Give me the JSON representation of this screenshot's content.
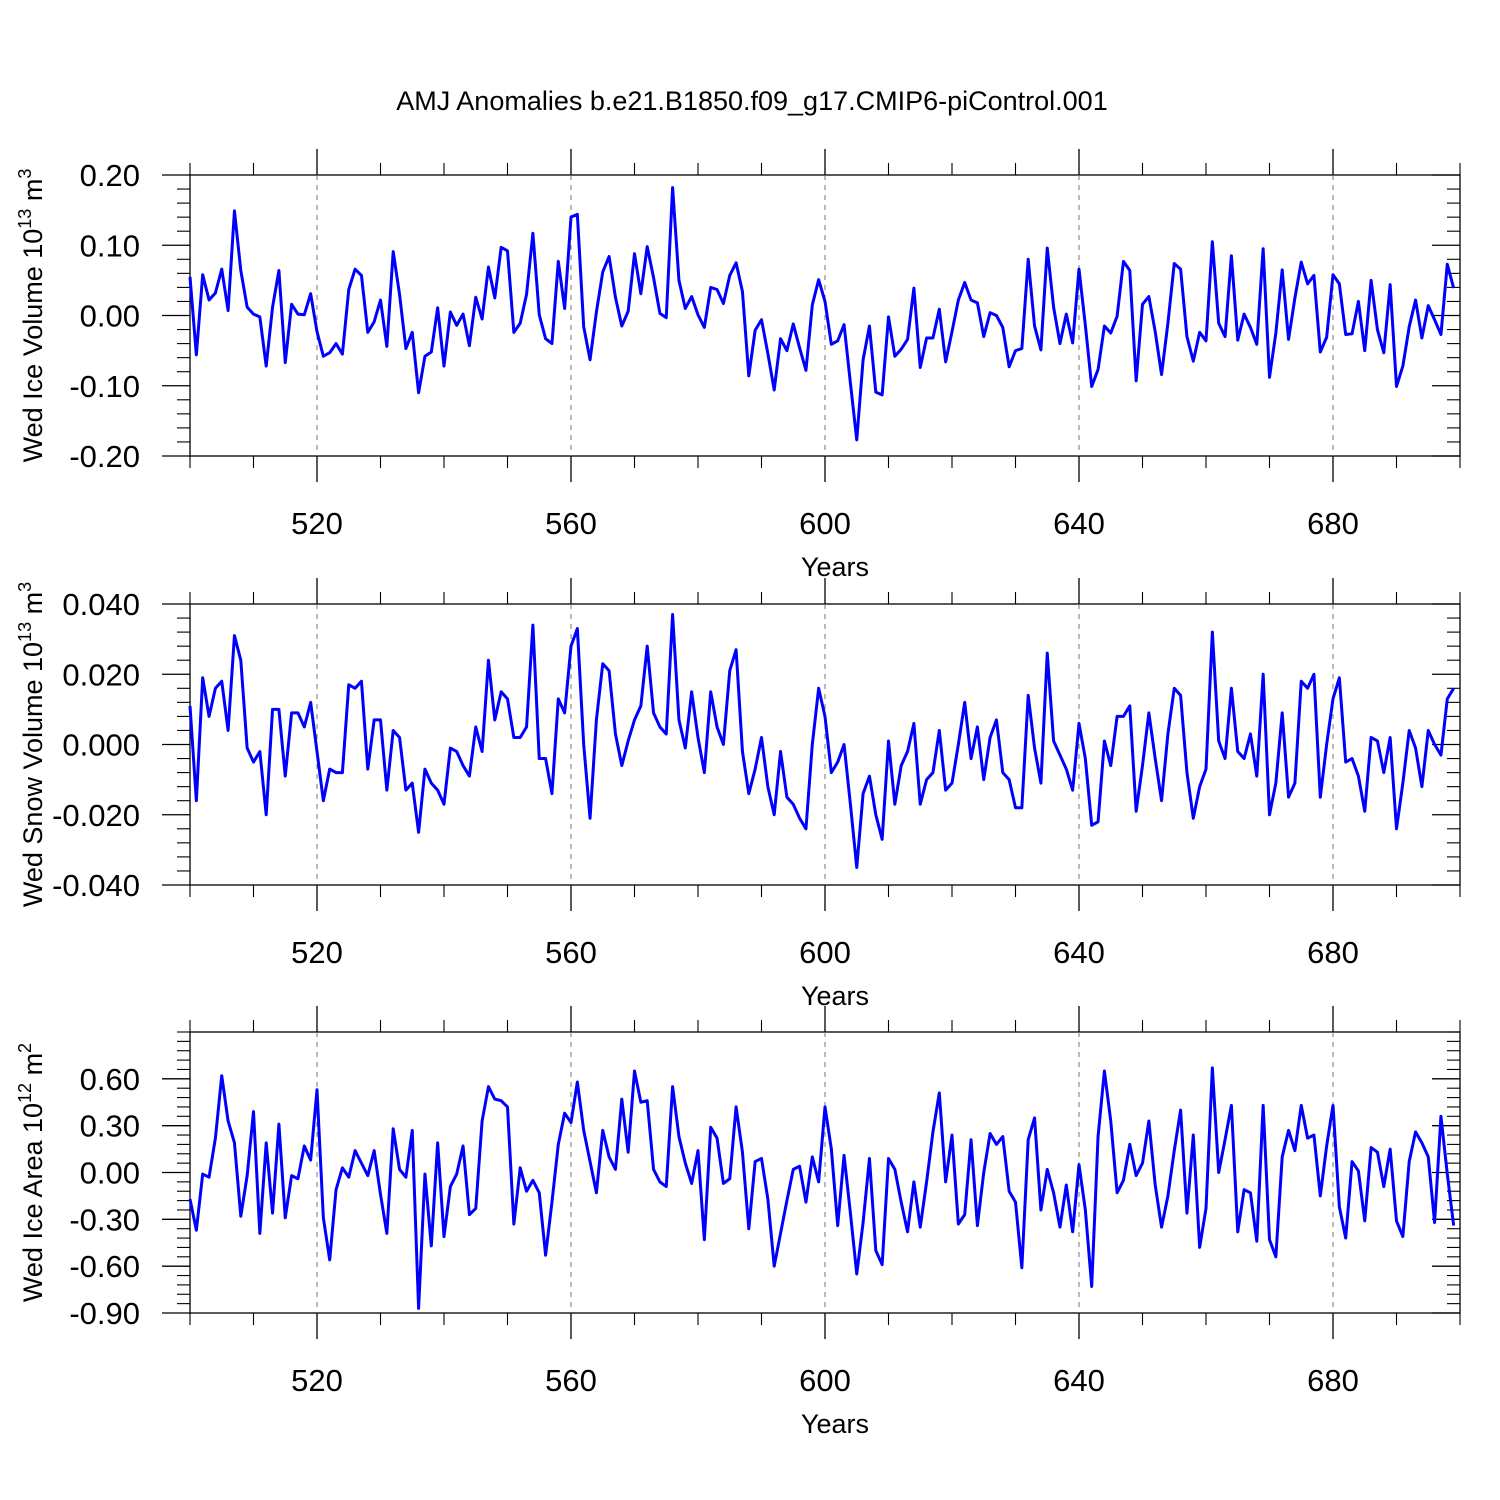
{
  "figure": {
    "title": "AMJ Anomalies b.e21.B1850.f09_g17.CMIP6-piControl.001",
    "line_color": "#0000ff"
  },
  "chart_data": [
    {
      "type": "line",
      "title": "",
      "xlabel": "Years",
      "ylabel": "Wed Ice Volume 10",
      "ylabel_exp": "13",
      "ylabel_unit": " m",
      "ylabel_unit_exp": "3",
      "xlim": [
        500,
        700
      ],
      "ylim": [
        -0.2,
        0.2
      ],
      "yticks": [
        -0.2,
        -0.1,
        0.0,
        0.1,
        0.2
      ],
      "ytick_labels": [
        "-0.20",
        "-0.10",
        "0.00",
        "0.10",
        "0.20"
      ],
      "xticks": [
        520,
        560,
        600,
        640,
        680
      ],
      "xtick_labels": [
        "520",
        "560",
        "600",
        "640",
        "680"
      ],
      "grid": "vertical dashed at major x ticks",
      "series": [
        {
          "name": "Wed Ice Volume",
          "x_start": 500,
          "values": [
            0.055,
            -0.056,
            0.058,
            0.022,
            0.032,
            0.066,
            0.007,
            0.149,
            0.064,
            0.012,
            0.002,
            -0.002,
            -0.072,
            0.012,
            0.064,
            -0.067,
            0.016,
            0.002,
            0.001,
            0.031,
            -0.023,
            -0.058,
            -0.053,
            -0.04,
            -0.055,
            0.037,
            0.066,
            0.057,
            -0.024,
            -0.009,
            0.022,
            -0.044,
            0.091,
            0.03,
            -0.047,
            -0.024,
            -0.11,
            -0.058,
            -0.052,
            0.011,
            -0.072,
            0.005,
            -0.014,
            0.002,
            -0.043,
            0.026,
            -0.005,
            0.069,
            0.025,
            0.097,
            0.092,
            -0.024,
            -0.011,
            0.03,
            0.117,
            0.001,
            -0.033,
            -0.04,
            0.077,
            0.01,
            0.14,
            0.144,
            -0.016,
            -0.063,
            0.005,
            0.062,
            0.084,
            0.026,
            -0.015,
            0.006,
            0.088,
            0.031,
            0.098,
            0.054,
            0.003,
            -0.003,
            0.182,
            0.05,
            0.01,
            0.027,
            0.001,
            -0.017,
            0.04,
            0.037,
            0.017,
            0.057,
            0.075,
            0.034,
            -0.086,
            -0.021,
            -0.006,
            -0.054,
            -0.106,
            -0.033,
            -0.05,
            -0.012,
            -0.046,
            -0.078,
            0.015,
            0.051,
            0.02,
            -0.041,
            -0.036,
            -0.013,
            -0.096,
            -0.177,
            -0.063,
            -0.015,
            -0.109,
            -0.113,
            -0.002,
            -0.058,
            -0.048,
            -0.034,
            0.039,
            -0.074,
            -0.032,
            -0.032,
            0.009,
            -0.066,
            -0.023,
            0.022,
            0.047,
            0.022,
            0.018,
            -0.03,
            0.004,
            0.0,
            -0.017,
            -0.073,
            -0.05,
            -0.047,
            0.08,
            -0.015,
            -0.049,
            0.096,
            0.012,
            -0.04,
            0.002,
            -0.039,
            0.066,
            -0.014,
            -0.101,
            -0.077,
            -0.015,
            -0.025,
            -0.001,
            0.077,
            0.064,
            -0.093,
            0.016,
            0.027,
            -0.023,
            -0.084,
            -0.011,
            0.074,
            0.066,
            -0.03,
            -0.065,
            -0.024,
            -0.036,
            0.105,
            -0.011,
            -0.03,
            0.085,
            -0.035,
            0.002,
            -0.017,
            -0.041,
            0.095,
            -0.088,
            -0.025,
            0.065,
            -0.034,
            0.025,
            0.076,
            0.045,
            0.057,
            -0.052,
            -0.031,
            0.058,
            0.045,
            -0.027,
            -0.026,
            0.02,
            -0.05,
            0.05,
            -0.02,
            -0.053,
            0.044,
            -0.101,
            -0.072,
            -0.016,
            0.022,
            -0.032,
            0.014,
            -0.006,
            -0.027,
            0.073,
            0.039
          ]
        }
      ]
    },
    {
      "type": "line",
      "title": "",
      "xlabel": "Years",
      "ylabel": "Wed Snow Volume 10",
      "ylabel_exp": "13",
      "ylabel_unit": " m",
      "ylabel_unit_exp": "3",
      "xlim": [
        500,
        700
      ],
      "ylim": [
        -0.04,
        0.04
      ],
      "yticks": [
        -0.04,
        -0.02,
        0.0,
        0.02,
        0.04
      ],
      "ytick_labels": [
        "-0.040",
        "-0.020",
        "0.000",
        "0.020",
        "0.040"
      ],
      "xticks": [
        520,
        560,
        600,
        640,
        680
      ],
      "xtick_labels": [
        "520",
        "560",
        "600",
        "640",
        "680"
      ],
      "grid": "vertical dashed at major x ticks",
      "series": [
        {
          "name": "Wed Snow Volume",
          "x_start": 500,
          "values": [
            0.011,
            -0.016,
            0.019,
            0.008,
            0.016,
            0.018,
            0.004,
            0.031,
            0.024,
            -0.001,
            -0.005,
            -0.002,
            -0.02,
            0.01,
            0.01,
            -0.009,
            0.009,
            0.009,
            0.005,
            0.012,
            -0.002,
            -0.016,
            -0.007,
            -0.008,
            -0.008,
            0.017,
            0.016,
            0.018,
            -0.007,
            0.007,
            0.007,
            -0.013,
            0.004,
            0.002,
            -0.013,
            -0.011,
            -0.025,
            -0.007,
            -0.011,
            -0.013,
            -0.017,
            -0.001,
            -0.002,
            -0.006,
            -0.009,
            0.005,
            -0.002,
            0.024,
            0.007,
            0.015,
            0.013,
            0.002,
            0.002,
            0.005,
            0.034,
            -0.004,
            -0.004,
            -0.014,
            0.013,
            0.009,
            0.028,
            0.033,
            0.0,
            -0.021,
            0.007,
            0.023,
            0.021,
            0.003,
            -0.006,
            0.001,
            0.007,
            0.011,
            0.028,
            0.009,
            0.005,
            0.003,
            0.037,
            0.007,
            -0.001,
            0.015,
            0.002,
            -0.008,
            0.015,
            0.005,
            0.0,
            0.021,
            0.027,
            -0.002,
            -0.014,
            -0.007,
            0.002,
            -0.012,
            -0.02,
            -0.002,
            -0.015,
            -0.017,
            -0.021,
            -0.024,
            0.0,
            0.016,
            0.008,
            -0.008,
            -0.005,
            0.0,
            -0.017,
            -0.035,
            -0.014,
            -0.009,
            -0.02,
            -0.027,
            0.001,
            -0.017,
            -0.006,
            -0.002,
            0.006,
            -0.017,
            -0.01,
            -0.008,
            0.004,
            -0.013,
            -0.011,
            0.0,
            0.012,
            -0.004,
            0.005,
            -0.01,
            0.002,
            0.007,
            -0.008,
            -0.01,
            -0.018,
            -0.018,
            0.014,
            -0.001,
            -0.011,
            0.026,
            0.001,
            -0.003,
            -0.007,
            -0.013,
            0.006,
            -0.004,
            -0.023,
            -0.022,
            0.001,
            -0.006,
            0.008,
            0.008,
            0.011,
            -0.019,
            -0.006,
            0.009,
            -0.004,
            -0.016,
            0.003,
            0.016,
            0.014,
            -0.008,
            -0.021,
            -0.012,
            -0.007,
            0.032,
            0.001,
            -0.004,
            0.016,
            -0.002,
            -0.004,
            0.003,
            -0.009,
            0.02,
            -0.02,
            -0.011,
            0.009,
            -0.015,
            -0.011,
            0.018,
            0.016,
            0.02,
            -0.015,
            0.0,
            0.013,
            0.019,
            -0.005,
            -0.004,
            -0.009,
            -0.019,
            0.002,
            0.001,
            -0.008,
            0.002,
            -0.024,
            -0.011,
            0.004,
            -0.001,
            -0.012,
            0.004,
            0.0,
            -0.003,
            0.013,
            0.016
          ]
        }
      ]
    },
    {
      "type": "line",
      "title": "",
      "xlabel": "Years",
      "ylabel": "Wed Ice Area 10",
      "ylabel_exp": "12",
      "ylabel_unit": " m",
      "ylabel_unit_exp": "2",
      "xlim": [
        500,
        700
      ],
      "ylim": [
        -0.9,
        0.9
      ],
      "yticks": [
        -0.9,
        -0.6,
        -0.3,
        0.0,
        0.3,
        0.6
      ],
      "ytick_labels": [
        "-0.90",
        "-0.60",
        "-0.30",
        "0.00",
        "0.30",
        "0.60"
      ],
      "xticks": [
        520,
        560,
        600,
        640,
        680
      ],
      "xtick_labels": [
        "520",
        "560",
        "600",
        "640",
        "680"
      ],
      "grid": "vertical dashed at major x ticks",
      "series": [
        {
          "name": "Wed Ice Area",
          "x_start": 500,
          "values": [
            -0.17,
            -0.37,
            -0.01,
            -0.03,
            0.22,
            0.62,
            0.33,
            0.19,
            -0.28,
            -0.02,
            0.39,
            -0.39,
            0.19,
            -0.26,
            0.31,
            -0.29,
            -0.02,
            -0.04,
            0.17,
            0.08,
            0.53,
            -0.29,
            -0.56,
            -0.11,
            0.03,
            -0.03,
            0.14,
            0.06,
            -0.02,
            0.14,
            -0.14,
            -0.39,
            0.28,
            0.02,
            -0.03,
            0.27,
            -0.87,
            -0.01,
            -0.47,
            0.19,
            -0.41,
            -0.09,
            -0.01,
            0.17,
            -0.27,
            -0.23,
            0.33,
            0.55,
            0.47,
            0.46,
            0.42,
            -0.33,
            0.03,
            -0.12,
            -0.05,
            -0.13,
            -0.53,
            -0.19,
            0.18,
            0.38,
            0.32,
            0.58,
            0.27,
            0.07,
            -0.13,
            0.27,
            0.1,
            0.02,
            0.47,
            0.13,
            0.65,
            0.45,
            0.46,
            0.02,
            -0.06,
            -0.09,
            0.55,
            0.23,
            0.06,
            -0.07,
            0.14,
            -0.43,
            0.29,
            0.22,
            -0.07,
            -0.04,
            0.42,
            0.13,
            -0.36,
            0.07,
            0.09,
            -0.17,
            -0.6,
            -0.39,
            -0.18,
            0.02,
            0.04,
            -0.19,
            0.1,
            -0.06,
            0.42,
            0.15,
            -0.34,
            0.11,
            -0.26,
            -0.65,
            -0.32,
            0.09,
            -0.5,
            -0.59,
            0.09,
            0.02,
            -0.19,
            -0.38,
            -0.06,
            -0.35,
            -0.06,
            0.26,
            0.51,
            -0.06,
            0.24,
            -0.33,
            -0.27,
            0.21,
            -0.34,
            0.0,
            0.25,
            0.18,
            0.23,
            -0.12,
            -0.19,
            -0.61,
            0.21,
            0.35,
            -0.24,
            0.02,
            -0.13,
            -0.35,
            -0.08,
            -0.38,
            0.05,
            -0.24,
            -0.73,
            0.23,
            0.65,
            0.33,
            -0.13,
            -0.05,
            0.18,
            -0.02,
            0.06,
            0.33,
            -0.08,
            -0.35,
            -0.15,
            0.14,
            0.4,
            -0.26,
            0.24,
            -0.48,
            -0.23,
            0.67,
            0.0,
            0.21,
            0.43,
            -0.38,
            -0.11,
            -0.13,
            -0.44,
            0.43,
            -0.43,
            -0.54,
            0.1,
            0.27,
            0.14,
            0.43,
            0.22,
            0.24,
            -0.15,
            0.17,
            0.43,
            -0.22,
            -0.42,
            0.07,
            0.01,
            -0.31,
            0.16,
            0.13,
            -0.09,
            0.15,
            -0.31,
            -0.41,
            0.07,
            0.26,
            0.19,
            0.1,
            -0.32,
            0.36,
            -0.01,
            -0.34
          ]
        }
      ]
    }
  ]
}
